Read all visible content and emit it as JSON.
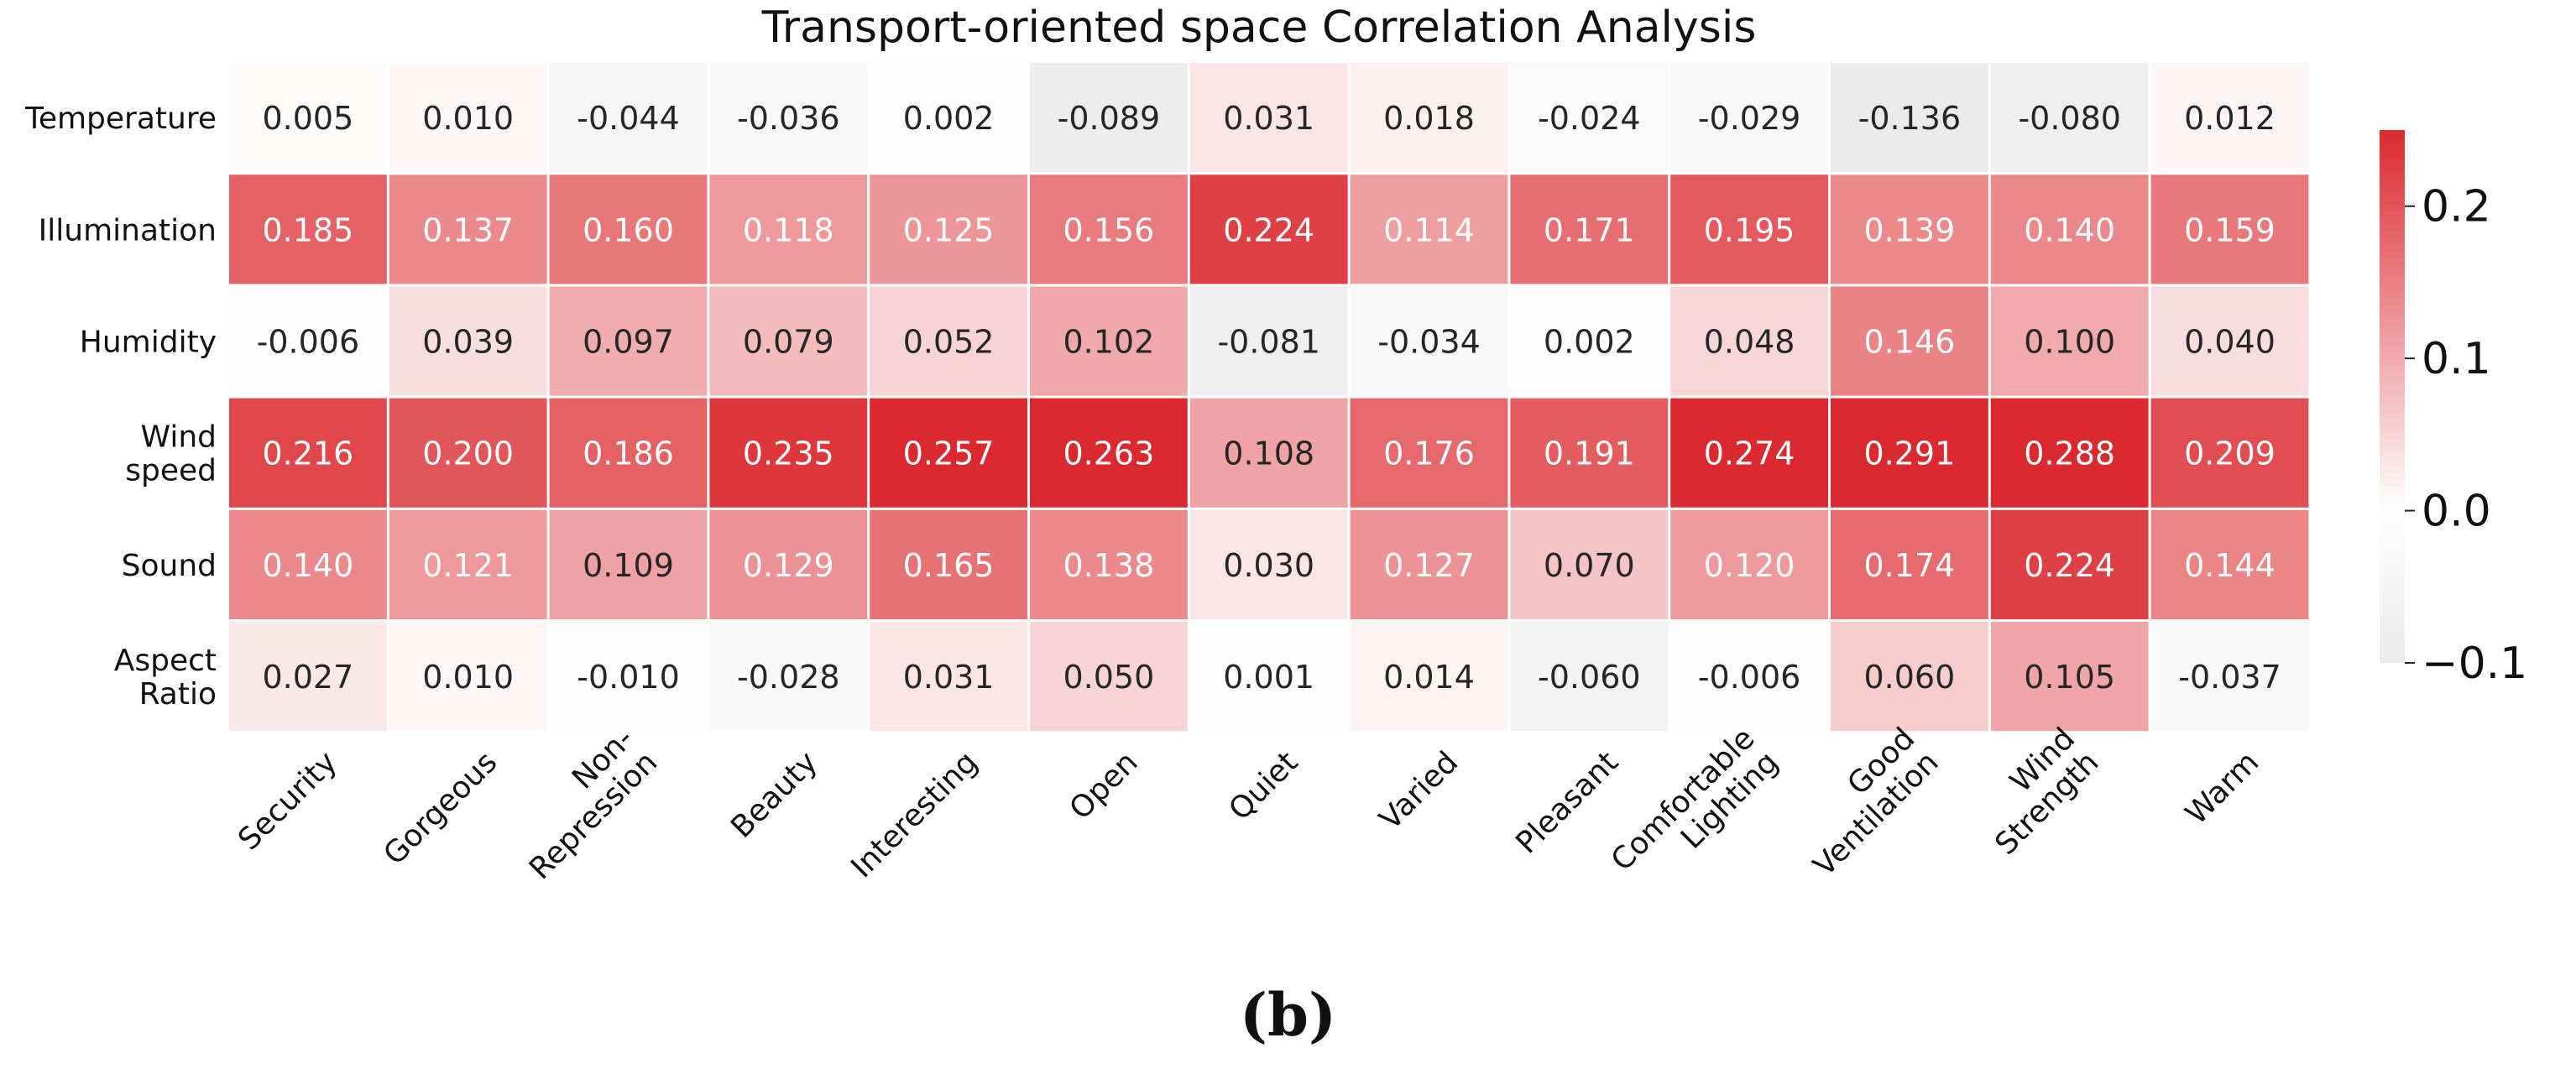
{
  "chart_data": {
    "type": "heatmap",
    "title": "Transport-oriented space Correlation Analysis",
    "rows": [
      [
        "Temperature"
      ],
      [
        "Illumination"
      ],
      [
        "Humidity"
      ],
      [
        "Wind",
        "speed"
      ],
      [
        "Sound"
      ],
      [
        "Aspect",
        "Ratio"
      ]
    ],
    "columns": [
      [
        "Security"
      ],
      [
        "Gorgeous"
      ],
      [
        "Non-",
        "Repression"
      ],
      [
        "Beauty"
      ],
      [
        "Interesting"
      ],
      [
        "Open"
      ],
      [
        "Quiet"
      ],
      [
        "Varied"
      ],
      [
        "Pleasant"
      ],
      [
        "Comfortable",
        "Lighting"
      ],
      [
        "Good",
        "Ventilation"
      ],
      [
        "Wind",
        "Strength"
      ],
      [
        "Warm"
      ]
    ],
    "values": [
      [
        "0.005",
        "0.010",
        "-0.044",
        "-0.036",
        "0.002",
        "-0.089",
        "0.031",
        "0.018",
        "-0.024",
        "-0.029",
        "-0.136",
        "-0.080",
        "0.012"
      ],
      [
        "0.185",
        "0.137",
        "0.160",
        "0.118",
        "0.125",
        "0.156",
        "0.224",
        "0.114",
        "0.171",
        "0.195",
        "0.139",
        "0.140",
        "0.159"
      ],
      [
        "-0.006",
        "0.039",
        "0.097",
        "0.079",
        "0.052",
        "0.102",
        "-0.081",
        "-0.034",
        "0.002",
        "0.048",
        "0.146",
        "0.100",
        "0.040"
      ],
      [
        "0.216",
        "0.200",
        "0.186",
        "0.235",
        "0.257",
        "0.263",
        "0.108",
        "0.176",
        "0.191",
        "0.274",
        "0.291",
        "0.288",
        "0.209"
      ],
      [
        "0.140",
        "0.121",
        "0.109",
        "0.129",
        "0.165",
        "0.138",
        "0.030",
        "0.127",
        "0.070",
        "0.120",
        "0.174",
        "0.224",
        "0.144"
      ],
      [
        "0.027",
        "0.010",
        "-0.010",
        "-0.028",
        "0.031",
        "0.050",
        "0.001",
        "0.014",
        "-0.060",
        "-0.006",
        "0.060",
        "0.105",
        "-0.037"
      ]
    ],
    "colorbar": {
      "vmin": -0.1,
      "vmax": 0.25,
      "ticks": [
        -0.1,
        0.0,
        0.1,
        0.2
      ],
      "tick_labels": [
        "−0.1",
        "0.0",
        "0.1",
        "0.2"
      ],
      "colors": {
        "low": "#ebebeb",
        "mid": "#ffffff",
        "high": "#db2a2f"
      }
    }
  },
  "caption": "(b)"
}
